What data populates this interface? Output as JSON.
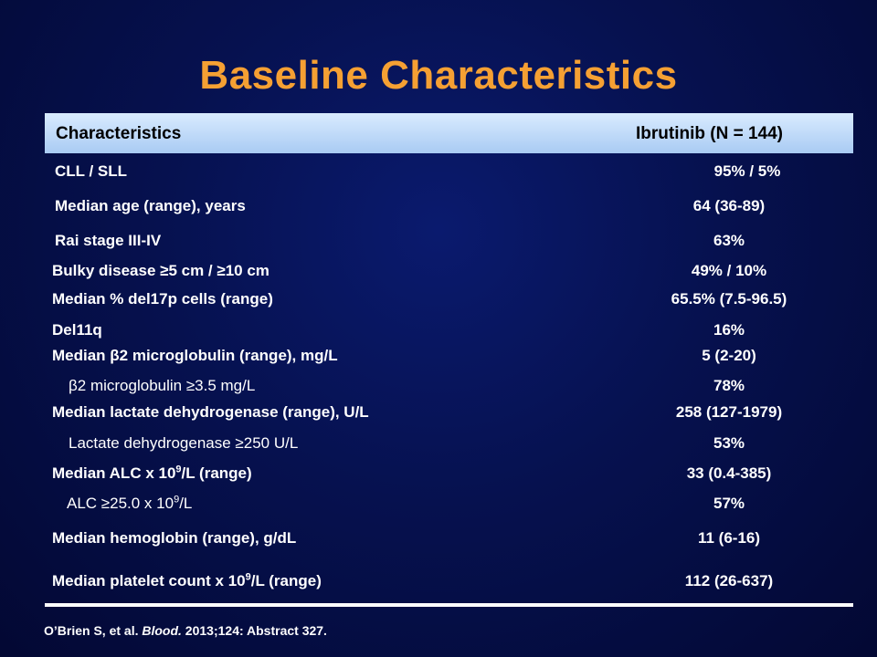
{
  "title": "Baseline Characteristics",
  "table": {
    "header": {
      "characteristic": "Characteristics",
      "value": "Ibrutinib (N = 144)"
    },
    "rows": [
      {
        "label": "CLL / SLL",
        "value": "95%  / 5%"
      },
      {
        "label": "Median age (range), years",
        "value": "64 (36-89)"
      },
      {
        "label": "Rai stage III-IV",
        "value": "63%"
      },
      {
        "label": "Bulky disease ≥5 cm / ≥10 cm",
        "value": "49%  / 10%"
      },
      {
        "label": "Median % del17p cells (range)",
        "value": "65.5% (7.5-96.5)"
      },
      {
        "label": "Del11q",
        "value": "16%"
      },
      {
        "label": "Median β2 microglobulin  (range), mg/L",
        "value": "5 (2-20)"
      },
      {
        "label": "β2 microglobulin  ≥3.5 mg/L",
        "value": "78%"
      },
      {
        "label": "Median lactate dehydrogenase (range), U/L",
        "value": "258 (127-1979)"
      },
      {
        "label": "Lactate dehydrogenase  ≥250 U/L",
        "value": "53%"
      },
      {
        "label_pre": "Median ALC x 10",
        "label_sup": "9",
        "label_post": "/L (range)",
        "value": "33 (0.4-385)"
      },
      {
        "label_pre": "ALC ≥25.0 x 10",
        "label_sup": "9",
        "label_post": "/L",
        "value": "57%"
      },
      {
        "label": "Median hemoglobin (range), g/dL",
        "value": "11 (6-16)"
      },
      {
        "label_pre": "Median platelet count x 10",
        "label_sup": "9",
        "label_post": "/L (range)",
        "value": "112 (26-637)"
      }
    ]
  },
  "citation": {
    "authors": "O’Brien S, et al. ",
    "journal": "Blood.",
    "details": " 2013;124: Abstract  327."
  }
}
